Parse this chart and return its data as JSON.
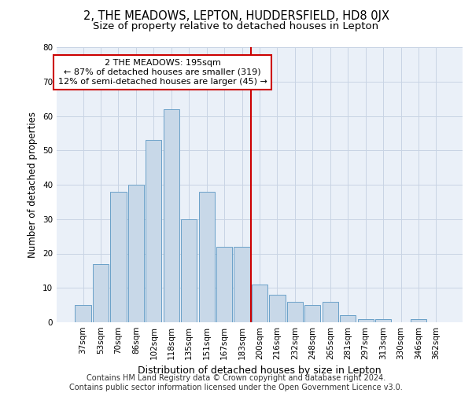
{
  "title": "2, THE MEADOWS, LEPTON, HUDDERSFIELD, HD8 0JX",
  "subtitle": "Size of property relative to detached houses in Lepton",
  "xlabel": "Distribution of detached houses by size in Lepton",
  "ylabel": "Number of detached properties",
  "bar_labels": [
    "37sqm",
    "53sqm",
    "70sqm",
    "86sqm",
    "102sqm",
    "118sqm",
    "135sqm",
    "151sqm",
    "167sqm",
    "183sqm",
    "200sqm",
    "216sqm",
    "232sqm",
    "248sqm",
    "265sqm",
    "281sqm",
    "297sqm",
    "313sqm",
    "330sqm",
    "346sqm",
    "362sqm"
  ],
  "bar_values": [
    5,
    17,
    38,
    40,
    53,
    62,
    30,
    38,
    22,
    22,
    11,
    8,
    6,
    5,
    6,
    2,
    1,
    1,
    0,
    1,
    0
  ],
  "bar_color": "#c8d8e8",
  "bar_edgecolor": "#6aa0c8",
  "vline_x": 9.5,
  "vline_color": "#cc0000",
  "annotation_line1": "2 THE MEADOWS: 195sqm",
  "annotation_line2": "← 87% of detached houses are smaller (319)",
  "annotation_line3": "12% of semi-detached houses are larger (45) →",
  "annotation_box_color": "#cc0000",
  "annotation_bg": "white",
  "ylim": [
    0,
    80
  ],
  "yticks": [
    0,
    10,
    20,
    30,
    40,
    50,
    60,
    70,
    80
  ],
  "grid_color": "#c8d4e4",
  "bg_color": "#eaf0f8",
  "footer": "Contains HM Land Registry data © Crown copyright and database right 2024.\nContains public sector information licensed under the Open Government Licence v3.0.",
  "title_fontsize": 10.5,
  "subtitle_fontsize": 9.5,
  "xlabel_fontsize": 9,
  "ylabel_fontsize": 8.5,
  "tick_fontsize": 7.5,
  "annotation_fontsize": 8,
  "footer_fontsize": 7
}
